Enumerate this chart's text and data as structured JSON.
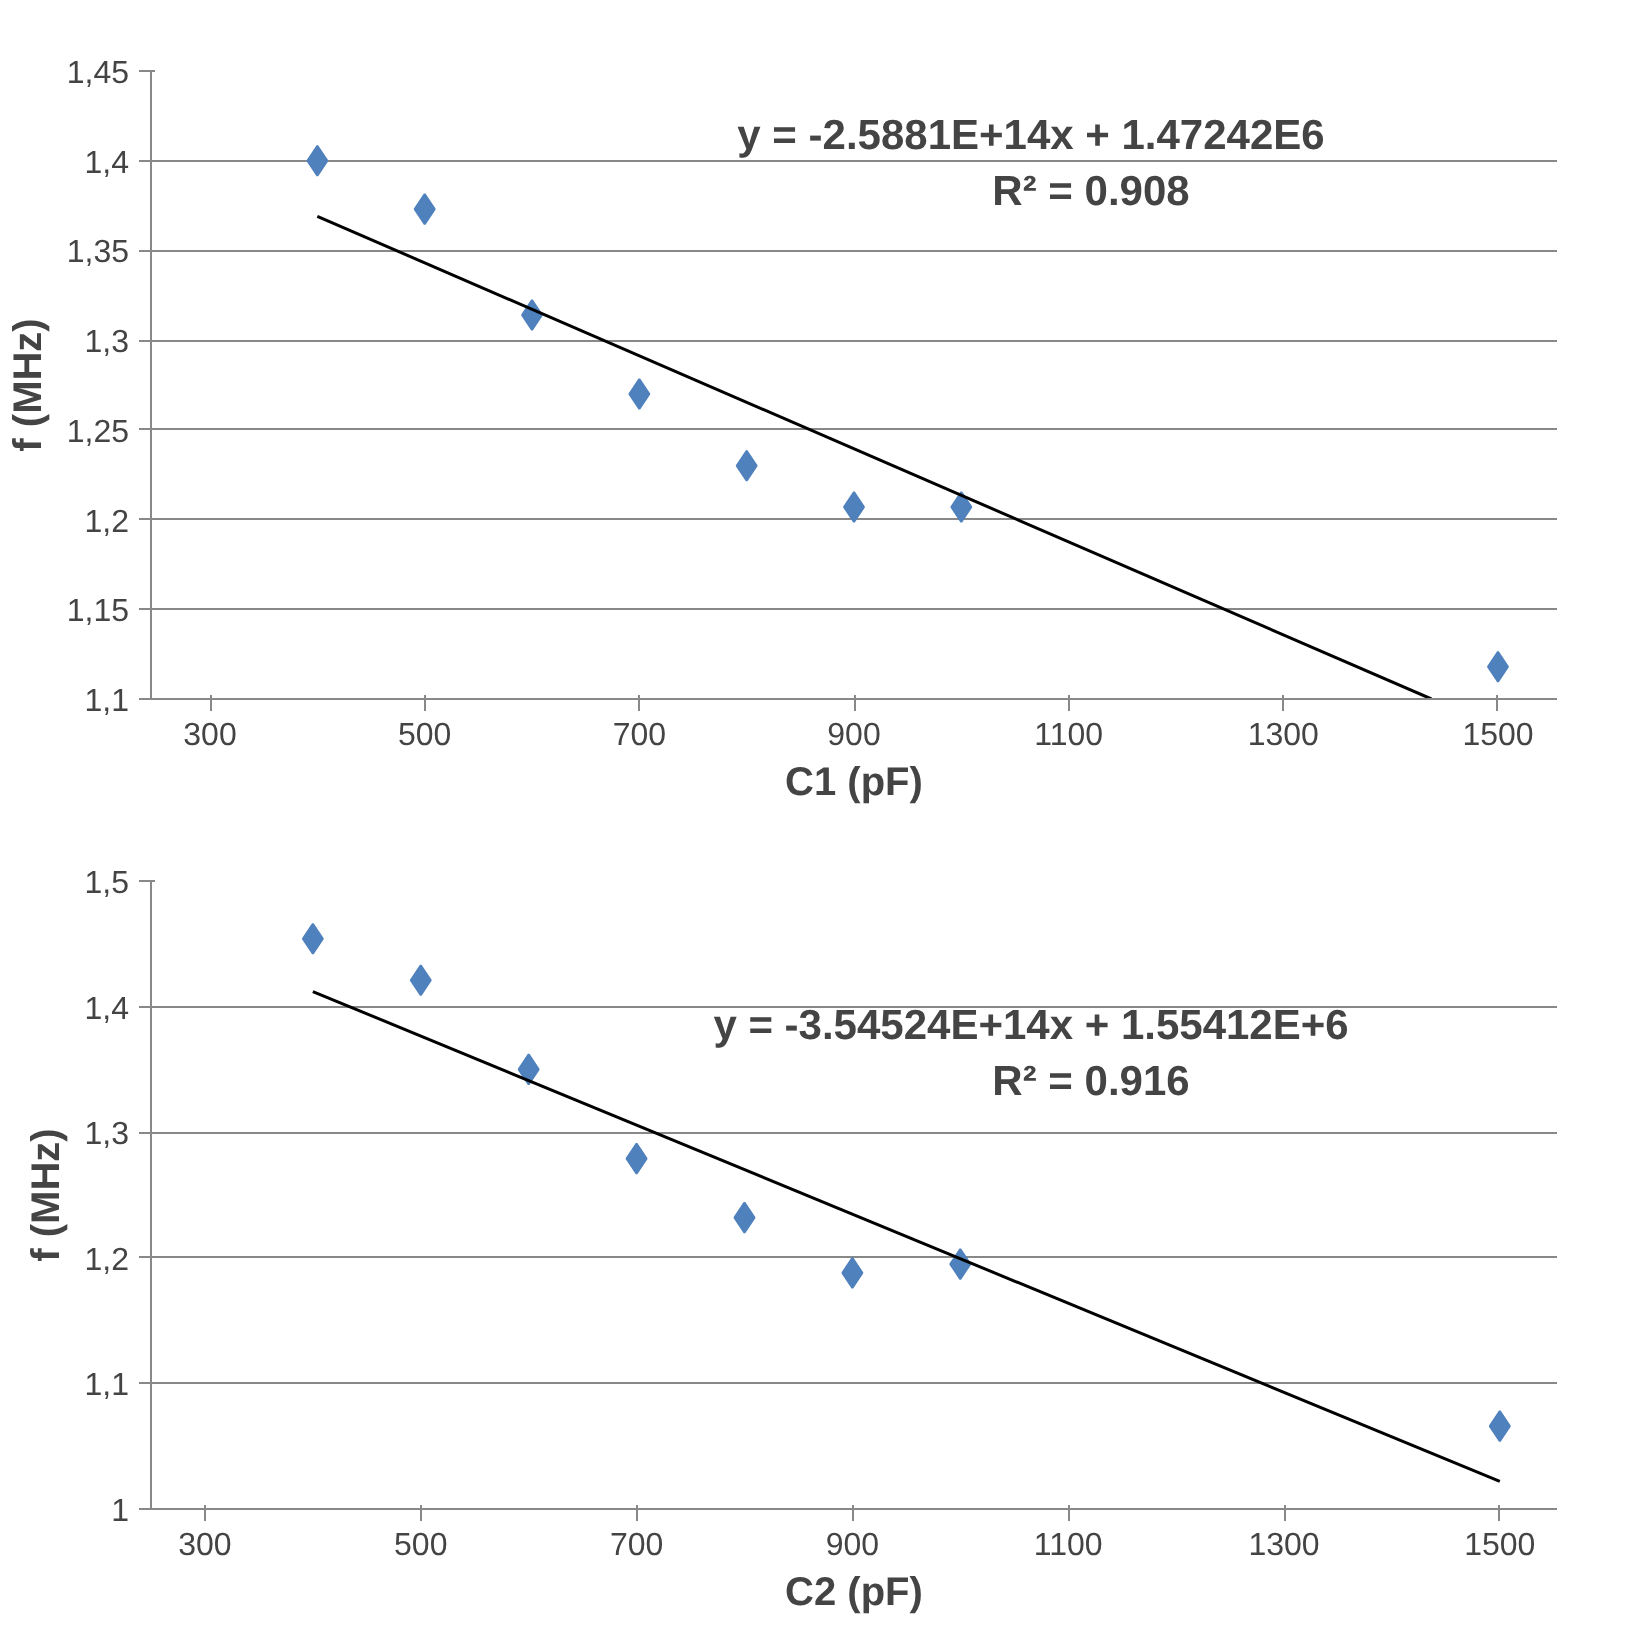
{
  "chart_data": [
    {
      "type": "scatter",
      "xlabel": "C1 (pF)",
      "ylabel": "f (MHz)",
      "xlim": [
        245,
        1555
      ],
      "xticks": [
        300,
        500,
        700,
        900,
        1100,
        1300,
        1500
      ],
      "ylim": [
        1.1,
        1.45
      ],
      "yticks": [
        {
          "value": 1.1,
          "label": "1,1"
        },
        {
          "value": 1.15,
          "label": "1,15"
        },
        {
          "value": 1.2,
          "label": "1,2"
        },
        {
          "value": 1.25,
          "label": "1,25"
        },
        {
          "value": 1.3,
          "label": "1,3"
        },
        {
          "value": 1.35,
          "label": "1,35"
        },
        {
          "value": 1.4,
          "label": "1,4"
        },
        {
          "value": 1.45,
          "label": "1,45"
        }
      ],
      "grid": "y",
      "annotations": [
        "y = -2.5881E+14x + 1.47242E6",
        "R² = 0.908"
      ],
      "series": [
        {
          "marker": "diamond",
          "color": "#4f81bd",
          "x": [
            400,
            500,
            600,
            700,
            800,
            900,
            1000,
            1500
          ],
          "values": [
            1.4,
            1.373,
            1.314,
            1.27,
            1.23,
            1.207,
            1.207,
            1.118
          ]
        },
        {
          "type": "line",
          "marker": "none",
          "line_style": "solid",
          "color": "#000000",
          "x": [
            400,
            1438
          ],
          "values": [
            1.369,
            1.1
          ]
        }
      ]
    },
    {
      "type": "scatter",
      "xlabel": "C2 (pF)",
      "ylabel": "f (MHz)",
      "xlim": [
        250,
        1553
      ],
      "xticks": [
        300,
        500,
        700,
        900,
        1100,
        1300,
        1500
      ],
      "ylim": [
        1.0,
        1.5
      ],
      "yticks": [
        1,
        {
          "value": 1.1,
          "label": "1,1"
        },
        {
          "value": 1.2,
          "label": "1,2"
        },
        {
          "value": 1.3,
          "label": "1,3"
        },
        {
          "value": 1.4,
          "label": "1,4"
        },
        {
          "value": 1.5,
          "label": "1,5"
        }
      ],
      "grid": "y",
      "annotations": [
        "y = -3.54524E+14x + 1.55412E+6",
        "R² = 0.916"
      ],
      "series": [
        {
          "marker": "diamond",
          "color": "#4f81bd",
          "x": [
            400,
            500,
            600,
            700,
            800,
            900,
            1000,
            1500
          ],
          "values": [
            1.454,
            1.421,
            1.35,
            1.279,
            1.232,
            1.188,
            1.195,
            1.066
          ]
        },
        {
          "type": "line",
          "marker": "none",
          "line_style": "solid",
          "color": "#000000",
          "x": [
            400,
            1500
          ],
          "values": [
            1.412,
            1.022
          ]
        }
      ]
    }
  ]
}
